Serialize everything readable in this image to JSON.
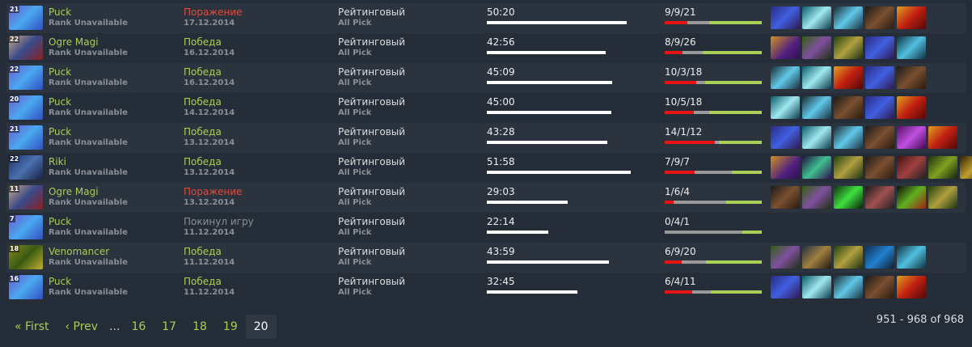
{
  "colors": {
    "win": "#a9cf54",
    "loss": "#e34b3b",
    "abandon": "#8a8f96",
    "kills": "#e81313",
    "deaths": "#999999",
    "assists": "#a9cf54"
  },
  "matches": [
    {
      "level": "21",
      "hero": "Puck",
      "rank": "Rank Unavailable",
      "result": "Поражение",
      "outcome": "loss",
      "date": "17.12.2014",
      "type": "Рейтинговый",
      "mode": "All Pick",
      "duration": "50:20",
      "minutes": 50.33,
      "kda": "9/9/21",
      "k": 9,
      "d": 9,
      "a": 21,
      "items": [
        "aghanims-scepter",
        "crescent-blade",
        "bottle",
        "boots",
        "radiance"
      ]
    },
    {
      "level": "22",
      "hero": "Ogre Magi",
      "rank": "Rank Unavailable",
      "result": "Победа",
      "outcome": "win",
      "date": "16.12.2014",
      "type": "Рейтинговый",
      "mode": "All Pick",
      "duration": "42:56",
      "minutes": 42.93,
      "kda": "8/9/26",
      "k": 8,
      "d": 9,
      "a": 26,
      "items": [
        "hand-of-midas",
        "urn",
        "ring",
        "aghanims-scepter",
        "bracer"
      ]
    },
    {
      "level": "22",
      "hero": "Puck",
      "rank": "Rank Unavailable",
      "result": "Победа",
      "outcome": "win",
      "date": "16.12.2014",
      "type": "Рейтинговый",
      "mode": "All Pick",
      "duration": "45:09",
      "minutes": 45.15,
      "kda": "10/3/18",
      "k": 10,
      "d": 3,
      "a": 18,
      "items": [
        "bottle",
        "crescent-blade",
        "radiance",
        "aghanims-scepter",
        "boots"
      ]
    },
    {
      "level": "20",
      "hero": "Puck",
      "rank": "Rank Unavailable",
      "result": "Победа",
      "outcome": "win",
      "date": "14.12.2014",
      "type": "Рейтинговый",
      "mode": "All Pick",
      "duration": "45:00",
      "minutes": 45.0,
      "kda": "10/5/18",
      "k": 10,
      "d": 5,
      "a": 18,
      "items": [
        "crescent-blade",
        "bottle",
        "boots",
        "aghanims-scepter",
        "radiance"
      ]
    },
    {
      "level": "21",
      "hero": "Puck",
      "rank": "Rank Unavailable",
      "result": "Победа",
      "outcome": "win",
      "date": "13.12.2014",
      "type": "Рейтинговый",
      "mode": "All Pick",
      "duration": "43:28",
      "minutes": 43.47,
      "kda": "14/1/12",
      "k": 14,
      "d": 1,
      "a": 12,
      "items": [
        "aghanims-scepter",
        "crescent-blade",
        "bottle",
        "boots",
        "orb",
        "radiance"
      ]
    },
    {
      "level": "22",
      "hero": "Riki",
      "rank": "Rank Unavailable",
      "result": "Победа",
      "outcome": "win",
      "date": "13.12.2014",
      "type": "Рейтинговый",
      "mode": "All Pick",
      "duration": "51:58",
      "minutes": 51.97,
      "kda": "7/9/7",
      "k": 7,
      "d": 9,
      "a": 7,
      "items": [
        "hand-of-midas",
        "dagger",
        "ring",
        "boots",
        "armlet",
        "blade",
        "butterfly"
      ]
    },
    {
      "level": "11",
      "hero": "Ogre Magi",
      "rank": "Rank Unavailable",
      "result": "Поражение",
      "outcome": "loss",
      "date": "13.12.2014",
      "type": "Рейтинговый",
      "mode": "All Pick",
      "duration": "29:03",
      "minutes": 29.05,
      "kda": "1/6/4",
      "k": 1,
      "d": 6,
      "a": 4,
      "items": [
        "boots",
        "urn",
        "orb-green",
        "axe",
        "mango",
        "ring"
      ]
    },
    {
      "level": "7",
      "hero": "Puck",
      "rank": "Rank Unavailable",
      "result": "Покинул игру",
      "outcome": "abandon",
      "date": "11.12.2014",
      "type": "Рейтинговый",
      "mode": "All Pick",
      "duration": "22:14",
      "minutes": 22.23,
      "kda": "0/4/1",
      "k": 0,
      "d": 4,
      "a": 1,
      "items": []
    },
    {
      "level": "18",
      "hero": "Venomancer",
      "rank": "Rank Unavailable",
      "result": "Победа",
      "outcome": "win",
      "date": "11.12.2014",
      "type": "Рейтинговый",
      "mode": "All Pick",
      "duration": "43:59",
      "minutes": 43.98,
      "kda": "6/9/20",
      "k": 6,
      "d": 9,
      "a": 20,
      "items": [
        "urn",
        "drum",
        "ring",
        "staff",
        "bracer"
      ]
    },
    {
      "level": "16",
      "hero": "Puck",
      "rank": "Rank Unavailable",
      "result": "Победа",
      "outcome": "win",
      "date": "11.12.2014",
      "type": "Рейтинговый",
      "mode": "All Pick",
      "duration": "32:45",
      "minutes": 32.75,
      "kda": "6/4/11",
      "k": 6,
      "d": 4,
      "a": 11,
      "items": [
        "aghanims-scepter",
        "crescent-blade",
        "bottle",
        "boots",
        "radiance"
      ]
    }
  ],
  "pagination": {
    "first": "« First",
    "prev": "‹ Prev",
    "ellipsis": "...",
    "pages": [
      "16",
      "17",
      "18",
      "19",
      "20"
    ],
    "current": "20"
  },
  "count": "951 - 968 of 968"
}
